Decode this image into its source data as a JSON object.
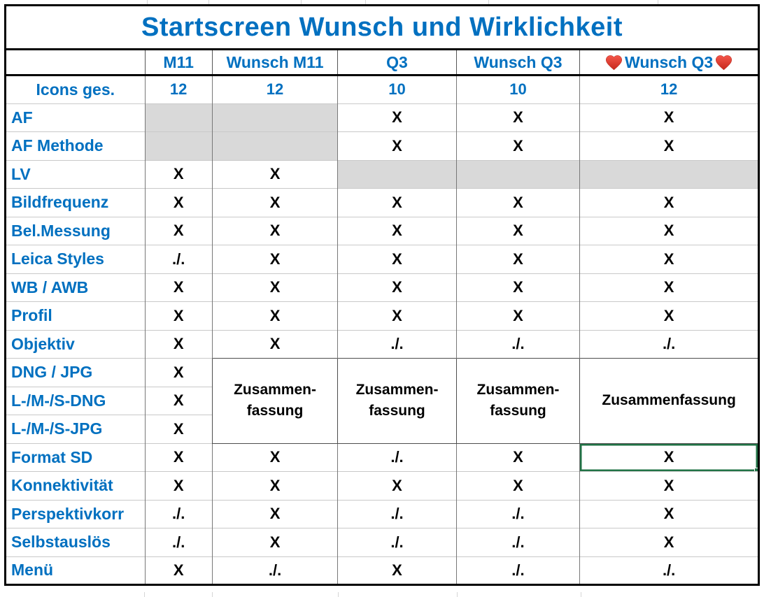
{
  "title": "Startscreen Wunsch und Wirklichkeit",
  "colors": {
    "accent_blue": "#0070C0",
    "fill_gray": "#D9D9D9",
    "selection_green": "#217346",
    "heart_red": "#E03A2B",
    "grid_light": "#C9C9C9",
    "grid_dark": "#787878",
    "border_black": "#000000"
  },
  "columns": [
    {
      "label": ""
    },
    {
      "label": "M11"
    },
    {
      "label": "Wunsch M11"
    },
    {
      "label": "Q3"
    },
    {
      "label": "Wunsch Q3"
    },
    {
      "label": "Wunsch Q3",
      "hearts": true
    }
  ],
  "rows": [
    {
      "label": "Icons ges.",
      "align": "center",
      "style": "count",
      "cells": [
        "12",
        "12",
        "10",
        "10",
        "12"
      ]
    },
    {
      "label": "AF",
      "cells": [
        "",
        "",
        "X",
        "X",
        "X"
      ],
      "gray": [
        0,
        1
      ]
    },
    {
      "label": "AF Methode",
      "cells": [
        "",
        "",
        "X",
        "X",
        "X"
      ],
      "gray": [
        0,
        1
      ]
    },
    {
      "label": "LV",
      "cells": [
        "X",
        "X",
        "",
        "",
        ""
      ],
      "gray": [
        2,
        3,
        4
      ]
    },
    {
      "label": "Bildfrequenz",
      "cells": [
        "X",
        "X",
        "X",
        "X",
        "X"
      ]
    },
    {
      "label": "Bel.Messung",
      "cells": [
        "X",
        "X",
        "X",
        "X",
        "X"
      ]
    },
    {
      "label": "Leica Styles",
      "cells": [
        "./.",
        "X",
        "X",
        "X",
        "X"
      ]
    },
    {
      "label": "WB / AWB",
      "cells": [
        "X",
        "X",
        "X",
        "X",
        "X"
      ]
    },
    {
      "label": "Profil",
      "cells": [
        "X",
        "X",
        "X",
        "X",
        "X"
      ]
    },
    {
      "label": "Objektiv",
      "cells": [
        "X",
        "X",
        "./.",
        "./.",
        "./."
      ]
    },
    {
      "label": "DNG / JPG",
      "cells": [
        "X"
      ]
    },
    {
      "label": "L-/M-/S-DNG",
      "cells": [
        "X"
      ]
    },
    {
      "label": "L-/M-/S-JPG",
      "cells": [
        "X"
      ]
    },
    {
      "label": "Format SD",
      "cells": [
        "X",
        "X",
        "./.",
        "X",
        "X"
      ]
    },
    {
      "label": "Konnektivität",
      "cells": [
        "X",
        "X",
        "X",
        "X",
        "X"
      ]
    },
    {
      "label": "Perspektivkorr",
      "cells": [
        "./.",
        "X",
        "./.",
        "./.",
        "X"
      ]
    },
    {
      "label": "Selbstauslös",
      "cells": [
        "./.",
        "X",
        "./.",
        "./.",
        "X"
      ]
    },
    {
      "label": "Menü",
      "cells": [
        "X",
        "./.",
        "X",
        "./.",
        "./."
      ]
    }
  ],
  "summary_merge": {
    "start_row_index": 10,
    "row_span": 3,
    "cells": [
      {
        "column": "Wunsch M11",
        "lines": [
          "Zusammen-",
          "fassung"
        ]
      },
      {
        "column": "Q3",
        "lines": [
          "Zusammen-",
          "fassung"
        ]
      },
      {
        "column": "Wunsch Q3",
        "lines": [
          "Zusammen-",
          "fassung"
        ]
      },
      {
        "column": "Wunsch Q3 hearts",
        "lines": [
          "Zusammenfassung"
        ]
      }
    ]
  },
  "selection": {
    "row_label": "Format SD",
    "column_label": "Wunsch Q3 hearts",
    "row_index": 13,
    "col_index": 4
  }
}
